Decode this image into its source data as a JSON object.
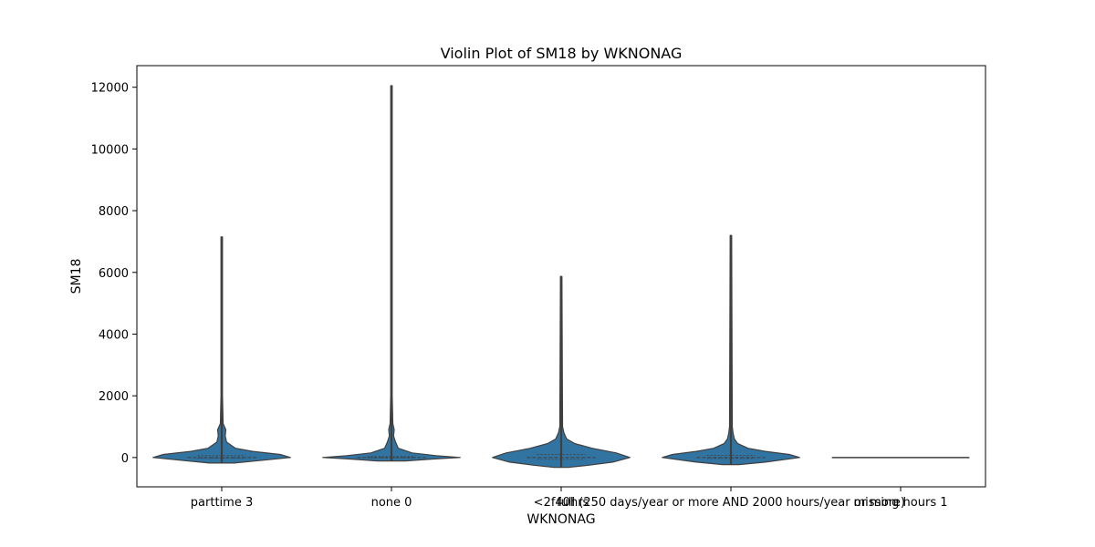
{
  "chart_data": {
    "type": "violin",
    "title": "Violin Plot of SM18 by WKNONAG",
    "xlabel": "WKNONAG",
    "ylabel": "SM18",
    "ylim": [
      -950,
      12700
    ],
    "yticks": [
      0,
      2000,
      4000,
      6000,
      8000,
      10000,
      12000
    ],
    "grid": false,
    "color": "#3274a1",
    "edge_color": "#3f3f3f",
    "categories": [
      "parttime 3",
      "none 0",
      "<2f40hrs",
      "full (250 days/year or more AND 2000 hours/year or more)",
      "missing hours 1"
    ],
    "violins": [
      {
        "category": "parttime 3",
        "min": -180,
        "max": 7150,
        "median": 0,
        "q1": -20,
        "q3": 60,
        "profile": [
          [
            -180,
            0.18
          ],
          [
            -100,
            0.55
          ],
          [
            0,
            1.0
          ],
          [
            100,
            0.85
          ],
          [
            200,
            0.45
          ],
          [
            300,
            0.2
          ],
          [
            500,
            0.07
          ],
          [
            700,
            0.05
          ],
          [
            900,
            0.06
          ],
          [
            1100,
            0.02
          ],
          [
            2000,
            0.01
          ],
          [
            7150,
            0.01
          ]
        ]
      },
      {
        "category": "none 0",
        "min": -110,
        "max": 12050,
        "median": 0,
        "q1": -10,
        "q3": 30,
        "profile": [
          [
            -110,
            0.2
          ],
          [
            -50,
            0.6
          ],
          [
            0,
            1.0
          ],
          [
            60,
            0.65
          ],
          [
            150,
            0.3
          ],
          [
            300,
            0.1
          ],
          [
            500,
            0.06
          ],
          [
            700,
            0.03
          ],
          [
            900,
            0.04
          ],
          [
            1100,
            0.02
          ],
          [
            2000,
            0.01
          ],
          [
            12050,
            0.01
          ]
        ]
      },
      {
        "category": "<2f40hrs",
        "min": -320,
        "max": 5870,
        "median": 0,
        "q1": -60,
        "q3": 100,
        "profile": [
          [
            -320,
            0.1
          ],
          [
            -250,
            0.4
          ],
          [
            -150,
            0.75
          ],
          [
            0,
            1.0
          ],
          [
            150,
            0.8
          ],
          [
            300,
            0.45
          ],
          [
            450,
            0.2
          ],
          [
            600,
            0.08
          ],
          [
            800,
            0.04
          ],
          [
            1000,
            0.02
          ],
          [
            5870,
            0.01
          ]
        ]
      },
      {
        "category": "full (250 days/year or more AND 2000 hours/year or more)",
        "min": -230,
        "max": 7200,
        "median": 0,
        "q1": -30,
        "q3": 70,
        "profile": [
          [
            -230,
            0.12
          ],
          [
            -150,
            0.5
          ],
          [
            0,
            1.0
          ],
          [
            100,
            0.85
          ],
          [
            200,
            0.5
          ],
          [
            300,
            0.25
          ],
          [
            450,
            0.1
          ],
          [
            600,
            0.05
          ],
          [
            800,
            0.03
          ],
          [
            1000,
            0.02
          ],
          [
            7200,
            0.01
          ]
        ]
      },
      {
        "category": "missing hours 1",
        "min": 0,
        "max": 0,
        "median": 0,
        "q1": 0,
        "q3": 0,
        "profile": []
      }
    ]
  }
}
